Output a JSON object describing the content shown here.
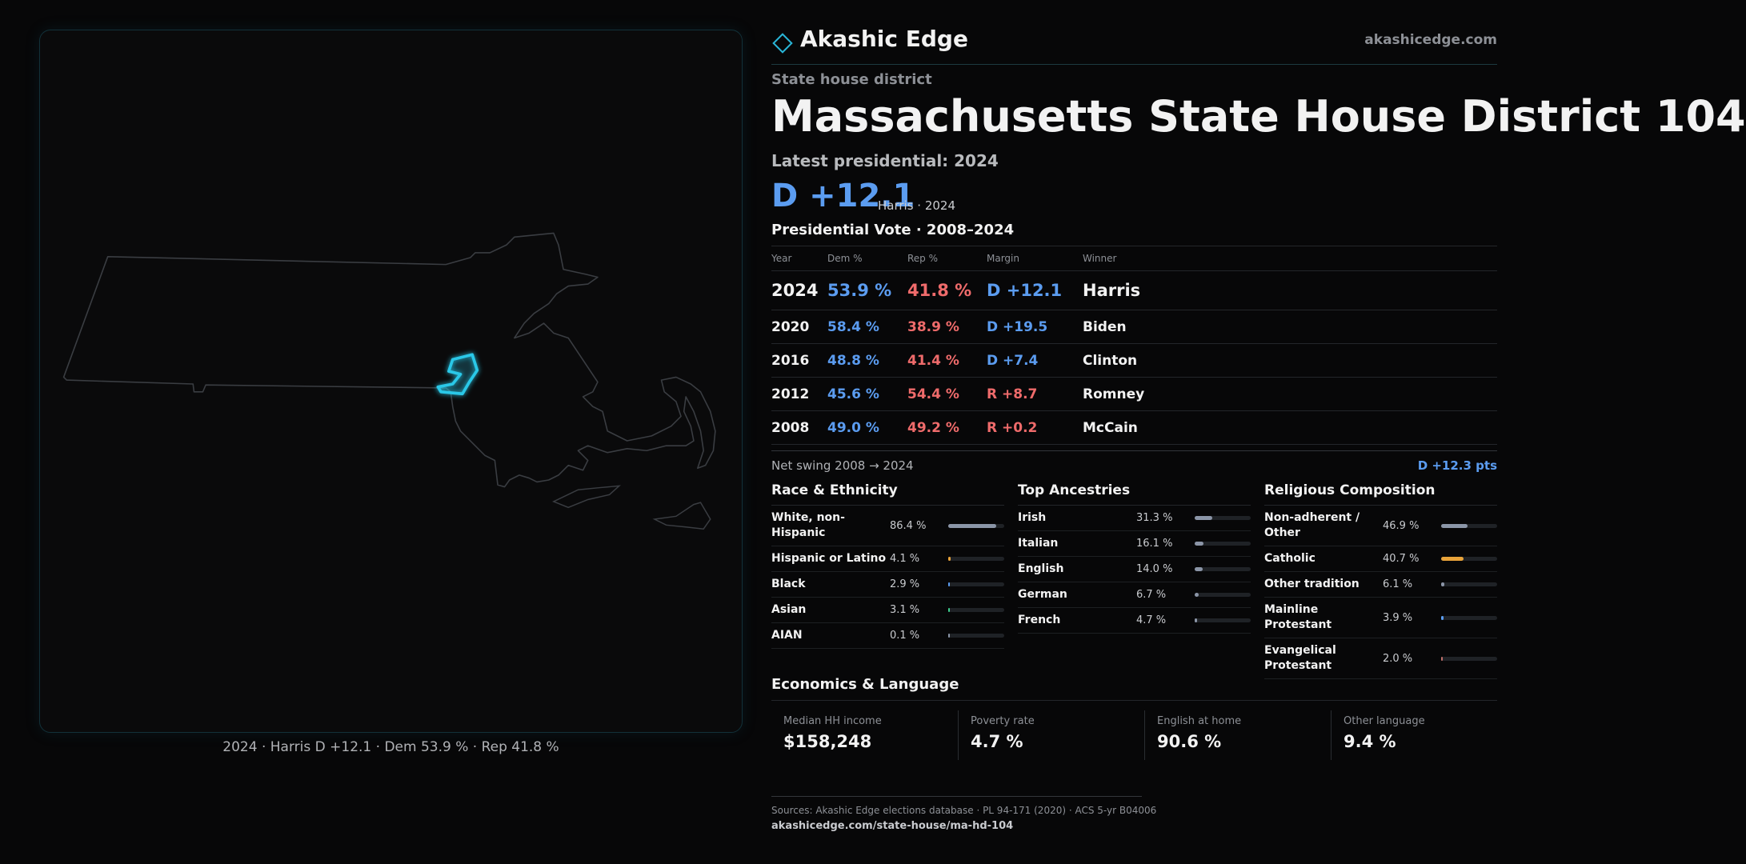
{
  "header": {
    "brand": "Akashic Edge",
    "site": "akashicedge.com"
  },
  "map": {
    "caption": "2024 · Harris D +12.1 · Dem 53.9 % · Rep 41.8 %"
  },
  "district": {
    "kind": "State house district",
    "title": "Massachusetts State House District 104",
    "latest_label": "Latest presidential: 2024",
    "margin": "D +12.1",
    "margin_note": "Harris · 2024"
  },
  "vote_table": {
    "title": "Presidential Vote · 2008–2024",
    "headers": [
      "Year",
      "Dem %",
      "Rep %",
      "Margin",
      "Winner"
    ],
    "rows": [
      [
        "2024",
        "53.9 %",
        "41.8 %",
        "D +12.1",
        "Harris"
      ],
      [
        "2020",
        "58.4 %",
        "38.9 %",
        "D +19.5",
        "Biden"
      ],
      [
        "2016",
        "48.8 %",
        "41.4 %",
        "D +7.4",
        "Clinton"
      ],
      [
        "2012",
        "45.6 %",
        "54.4 %",
        "R +8.7",
        "Romney"
      ],
      [
        "2008",
        "49.0 %",
        "49.2 %",
        "R +0.2",
        "McCain"
      ]
    ]
  },
  "swing": {
    "label": "Net swing 2008 → 2024",
    "value": "D +12.3 pts"
  },
  "demographics": [
    {
      "title": "Race & Ethnicity",
      "rows": [
        {
          "name": "White, non-Hispanic",
          "value": 86.4,
          "label": "86.4 %",
          "color": "#8b95a7"
        },
        {
          "name": "Hispanic or Latino",
          "value": 4.1,
          "label": "4.1 %",
          "color": "#e8a33a"
        },
        {
          "name": "Black",
          "value": 2.9,
          "label": "2.9 %",
          "color": "#5b9cf0"
        },
        {
          "name": "Asian",
          "value": 3.1,
          "label": "3.1 %",
          "color": "#3ccf8e"
        },
        {
          "name": "AIAN",
          "value": 0.1,
          "label": "0.1 %",
          "color": "#8b95a7"
        }
      ]
    },
    {
      "title": "Top Ancestries",
      "rows": [
        {
          "name": "Irish",
          "value": 31.3,
          "label": "31.3 %",
          "color": "#8b95a7"
        },
        {
          "name": "Italian",
          "value": 16.1,
          "label": "16.1 %",
          "color": "#8b95a7"
        },
        {
          "name": "English",
          "value": 14.0,
          "label": "14.0 %",
          "color": "#8b95a7"
        },
        {
          "name": "German",
          "value": 6.7,
          "label": "6.7 %",
          "color": "#8b95a7"
        },
        {
          "name": "French",
          "value": 4.7,
          "label": "4.7 %",
          "color": "#8b95a7"
        }
      ]
    },
    {
      "title": "Religious Composition",
      "rows": [
        {
          "name": "Non-adherent / Other",
          "value": 46.9,
          "label": "46.9 %",
          "color": "#8b95a7"
        },
        {
          "name": "Catholic",
          "value": 40.7,
          "label": "40.7 %",
          "color": "#e8a33a"
        },
        {
          "name": "Other tradition",
          "value": 6.1,
          "label": "6.1 %",
          "color": "#8b95a7"
        },
        {
          "name": "Mainline Protestant",
          "value": 3.9,
          "label": "3.9 %",
          "color": "#5b9cf0"
        },
        {
          "name": "Evangelical Protestant",
          "value": 2.0,
          "label": "2.0 %",
          "color": "#c0706a"
        }
      ]
    }
  ],
  "economics": {
    "title": "Economics & Language",
    "items": [
      {
        "label": "Median HH income",
        "value": "$158,248"
      },
      {
        "label": "Poverty rate",
        "value": "4.7 %"
      },
      {
        "label": "English at home",
        "value": "90.6 %"
      },
      {
        "label": "Other language",
        "value": "9.4 %"
      }
    ]
  },
  "footer": {
    "sources": "Sources: Akashic Edge elections database · PL 94-171 (2020) · ACS 5-yr B04006",
    "url": "akashicedge.com/state-house/ma-hd-104"
  }
}
